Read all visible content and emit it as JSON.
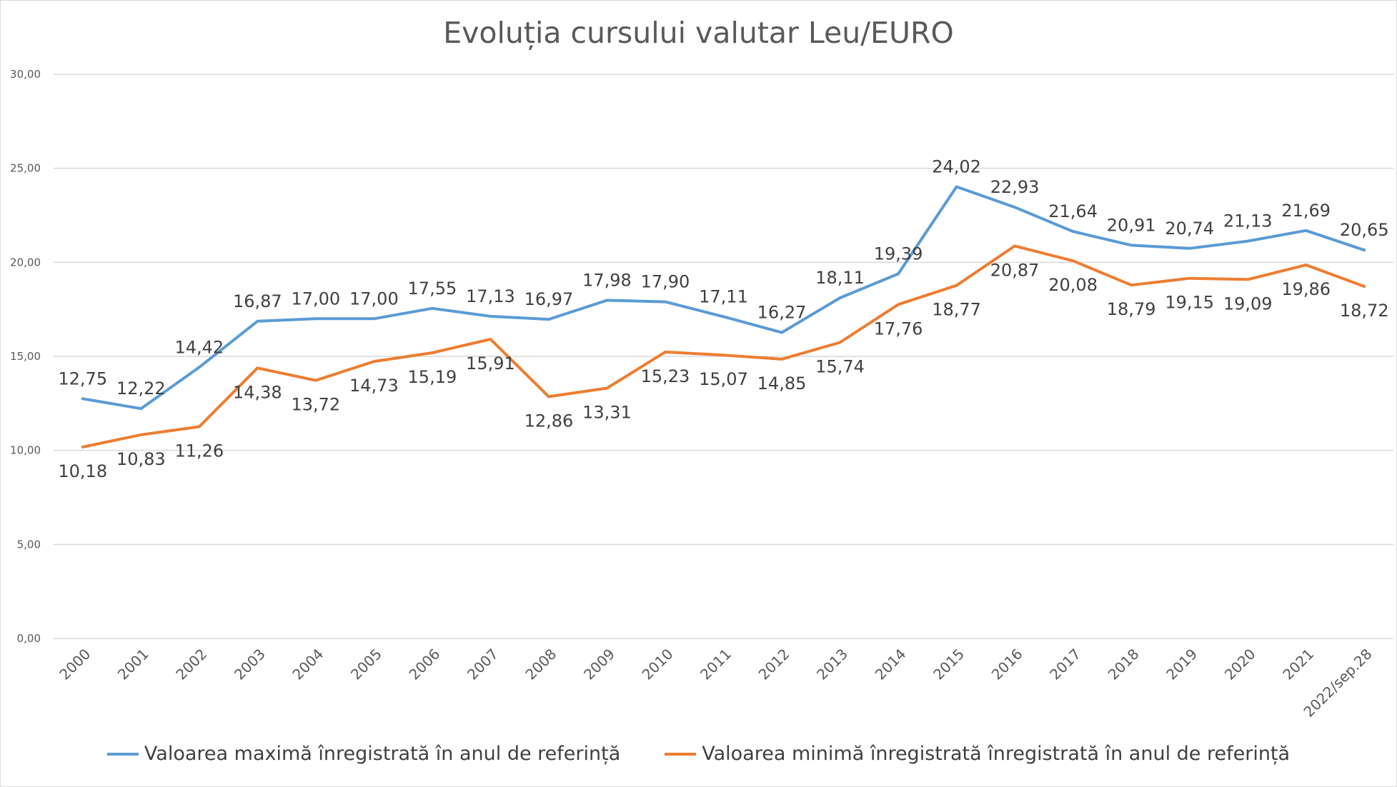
{
  "chart_data": {
    "type": "line",
    "title": "Evoluția cursului valutar Leu/EURO",
    "xlabel": "",
    "ylabel": "",
    "ylim": [
      0,
      30
    ],
    "yticks": [
      "0,00",
      "5,00",
      "10,00",
      "15,00",
      "20,00",
      "25,00",
      "30,00"
    ],
    "grid": true,
    "legend_position": "bottom",
    "categories": [
      "2000",
      "2001",
      "2002",
      "2003",
      "2004",
      "2005",
      "2006",
      "2007",
      "2008",
      "2009",
      "2010",
      "2011",
      "2012",
      "2013",
      "2014",
      "2015",
      "2016",
      "2017",
      "2018",
      "2019",
      "2020",
      "2021",
      "2022/sep.28"
    ],
    "series": [
      {
        "name": "Valoarea maximă înregistrată în anul de referință",
        "color": "#5b9bd5",
        "values": [
          12.75,
          12.22,
          14.42,
          16.87,
          17.0,
          17.0,
          17.55,
          17.13,
          16.97,
          17.98,
          17.9,
          17.11,
          16.27,
          18.11,
          19.39,
          24.02,
          22.93,
          21.64,
          20.91,
          20.74,
          21.13,
          21.69,
          20.65
        ],
        "labels": [
          "12,75",
          "12,22",
          "14,42",
          "16,87",
          "17,00",
          "17,00",
          "17,55",
          "17,13",
          "16,97",
          "17,98",
          "17,90",
          "17,11",
          "16,27",
          "18,11",
          "19,39",
          "24,02",
          "22,93",
          "21,64",
          "20,91",
          "20,74",
          "21,13",
          "21,69",
          "20,65"
        ]
      },
      {
        "name": "Valoarea minimă înregistrată înregistrată în anul de referință",
        "color": "#ed7d31",
        "values": [
          10.18,
          10.83,
          11.26,
          14.38,
          13.72,
          14.73,
          15.19,
          15.91,
          12.86,
          13.31,
          15.23,
          15.07,
          14.85,
          15.74,
          17.76,
          18.77,
          20.87,
          20.08,
          18.79,
          19.15,
          19.09,
          19.86,
          18.72
        ],
        "labels": [
          "10,18",
          "10,83",
          "11,26",
          "14,38",
          "13,72",
          "14,73",
          "15,19",
          "15,91",
          "12,86",
          "13,31",
          "15,23",
          "15,07",
          "14,85",
          "15,74",
          "17,76",
          "18,77",
          "20,87",
          "20,08",
          "18,79",
          "19,15",
          "19,09",
          "19,86",
          "18,72"
        ]
      }
    ]
  }
}
